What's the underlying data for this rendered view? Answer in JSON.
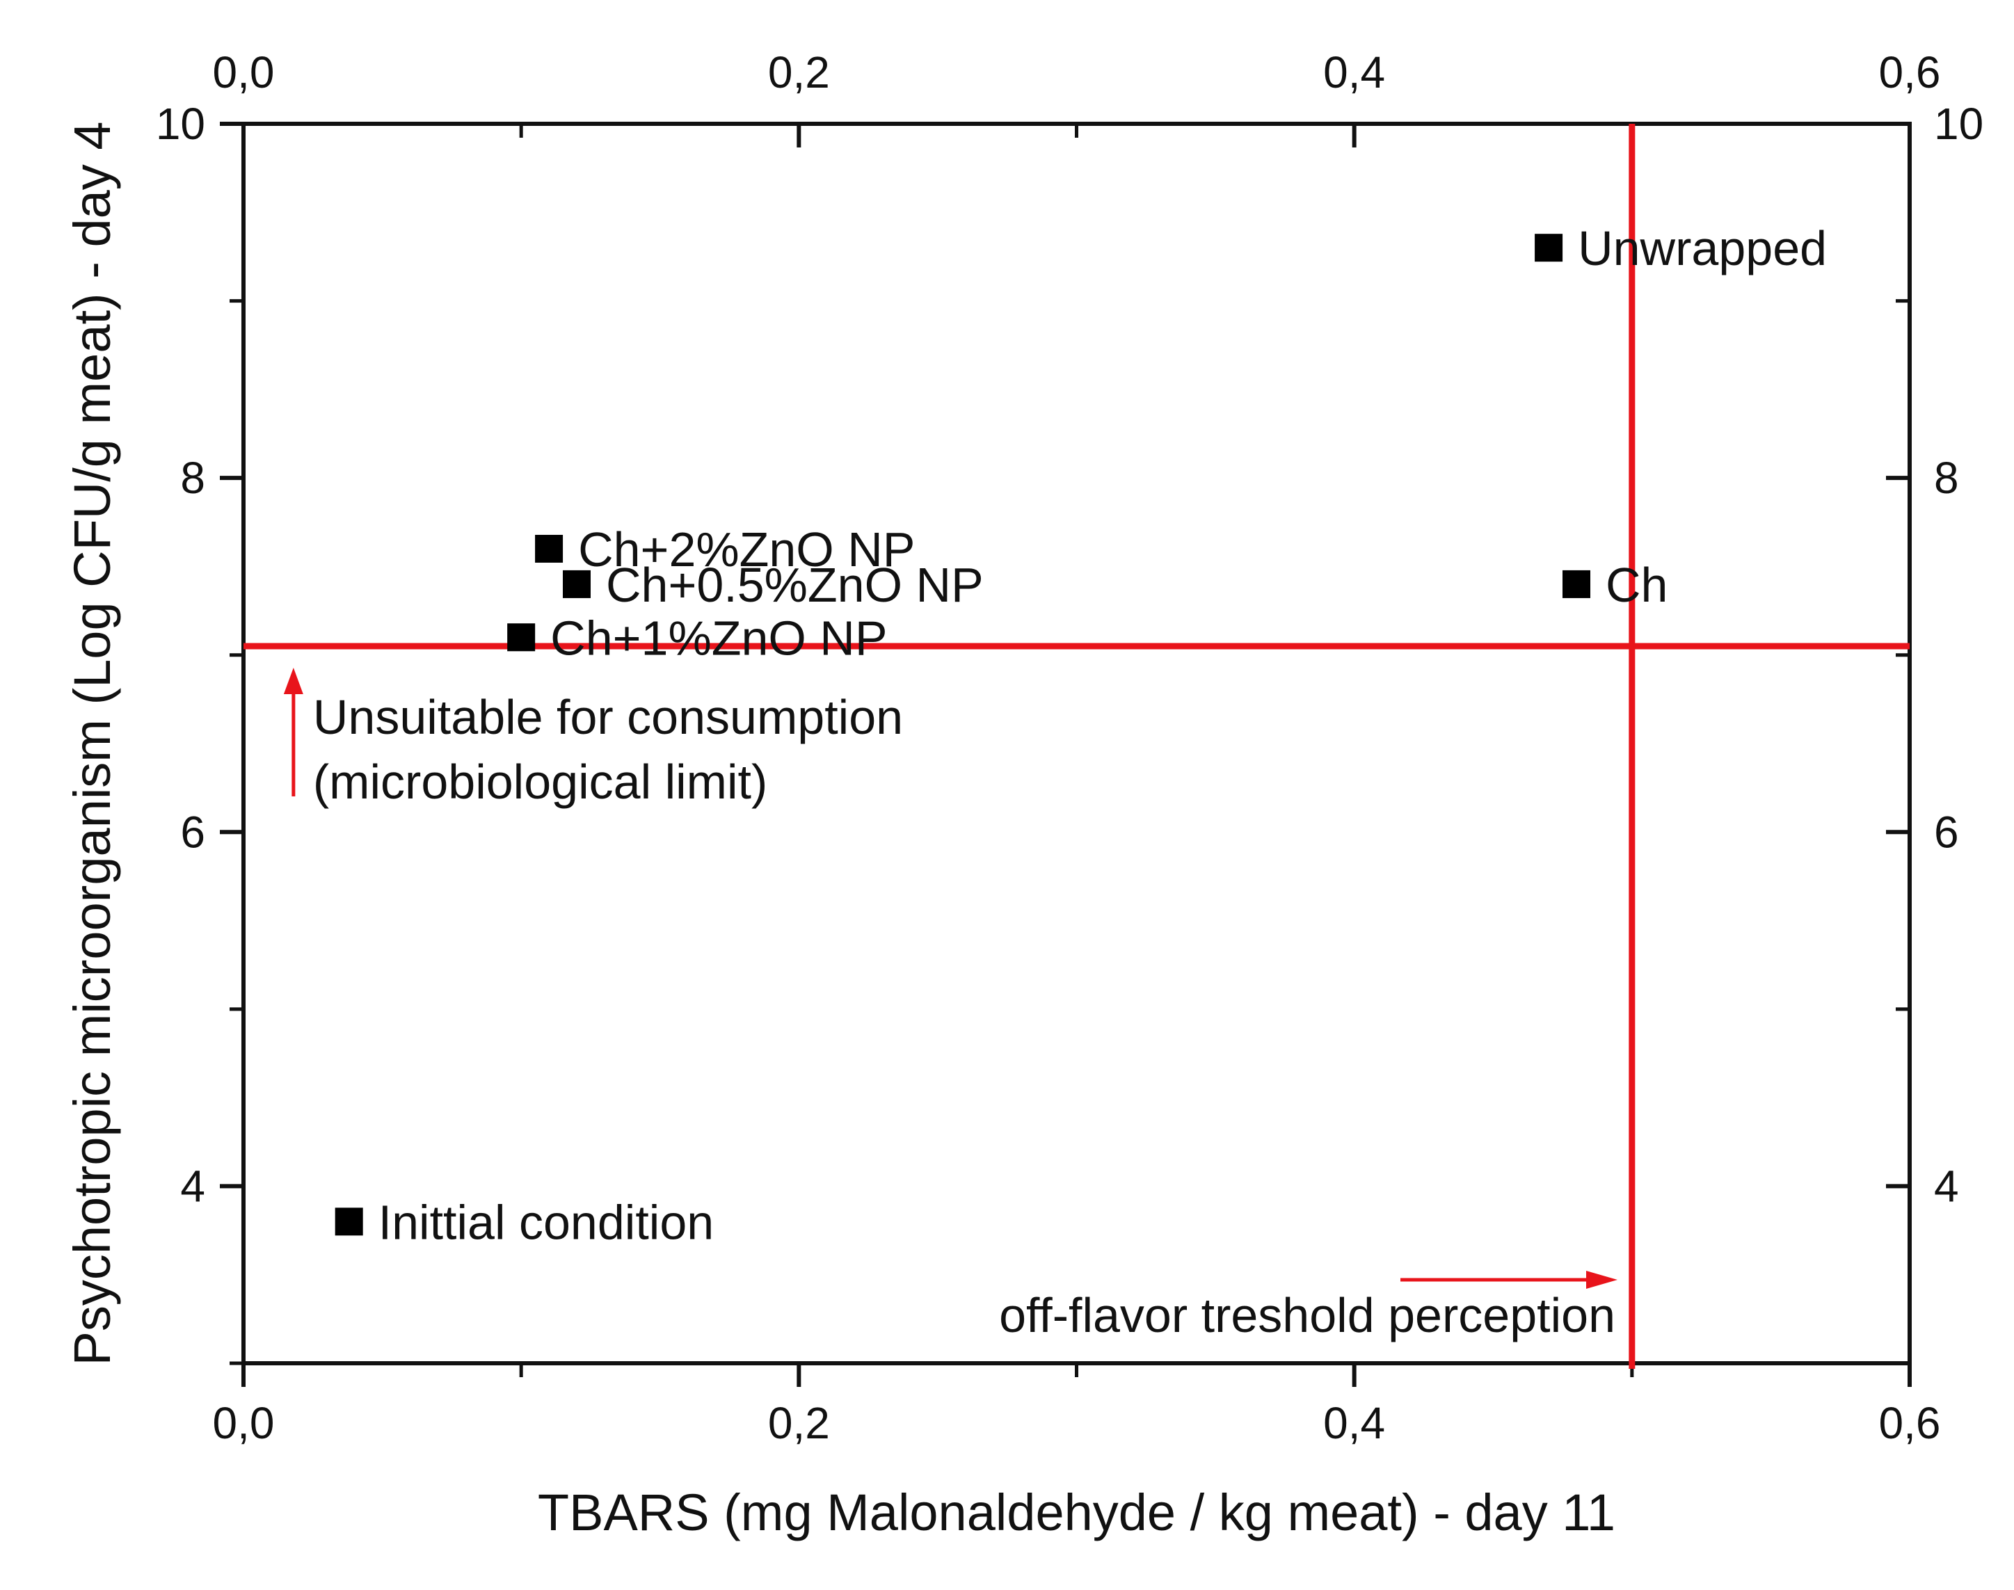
{
  "chart_data": {
    "type": "scatter",
    "xlabel": "TBARS (mg Malonaldehyde / kg meat) - day 11",
    "ylabel": "Psychotropic microorganism (Log CFU/g meat) - day 4",
    "xlim": [
      0.0,
      0.6
    ],
    "ylim": [
      3.0,
      10.0
    ],
    "x_ticks": [
      0.0,
      0.2,
      0.4,
      0.6
    ],
    "x_tick_labels": [
      "0,0",
      "0,2",
      "0,4",
      "0,6"
    ],
    "y_ticks": [
      4,
      6,
      8,
      10
    ],
    "y_tick_labels": [
      "4",
      "6",
      "8",
      "10"
    ],
    "x_minor_ticks": [
      0.1,
      0.3,
      0.5
    ],
    "y_minor_ticks": [
      3,
      5,
      7,
      9
    ],
    "mirror_axes": true,
    "grid": false,
    "legend": "none",
    "points": [
      {
        "label": "Inittial condition",
        "x": 0.038,
        "y": 3.8
      },
      {
        "label": "Ch+2%ZnO NP",
        "x": 0.11,
        "y": 7.6
      },
      {
        "label": "Ch+0.5%ZnO NP",
        "x": 0.12,
        "y": 7.4
      },
      {
        "label": "Ch+1%ZnO NP",
        "x": 0.1,
        "y": 7.1
      },
      {
        "label": "Ch",
        "x": 0.48,
        "y": 7.4
      },
      {
        "label": "Unwrapped",
        "x": 0.47,
        "y": 9.3
      }
    ],
    "reference_lines": [
      {
        "orientation": "horizontal",
        "value": 7.05,
        "color": "#e8141b"
      },
      {
        "orientation": "vertical",
        "value": 0.5,
        "color": "#e8141b"
      }
    ],
    "annotations": [
      {
        "id": "microbio",
        "lines": [
          "Unsuitable for consumption",
          "(microbiological limit)"
        ],
        "arrow": "up",
        "color": "#e8141b"
      },
      {
        "id": "flavor",
        "lines": [
          "off-flavor treshold perception"
        ],
        "arrow": "right",
        "color": "#e8141b"
      }
    ],
    "colors": {
      "marker": "#000000",
      "axis": "#111111",
      "reference": "#e8141b"
    }
  }
}
